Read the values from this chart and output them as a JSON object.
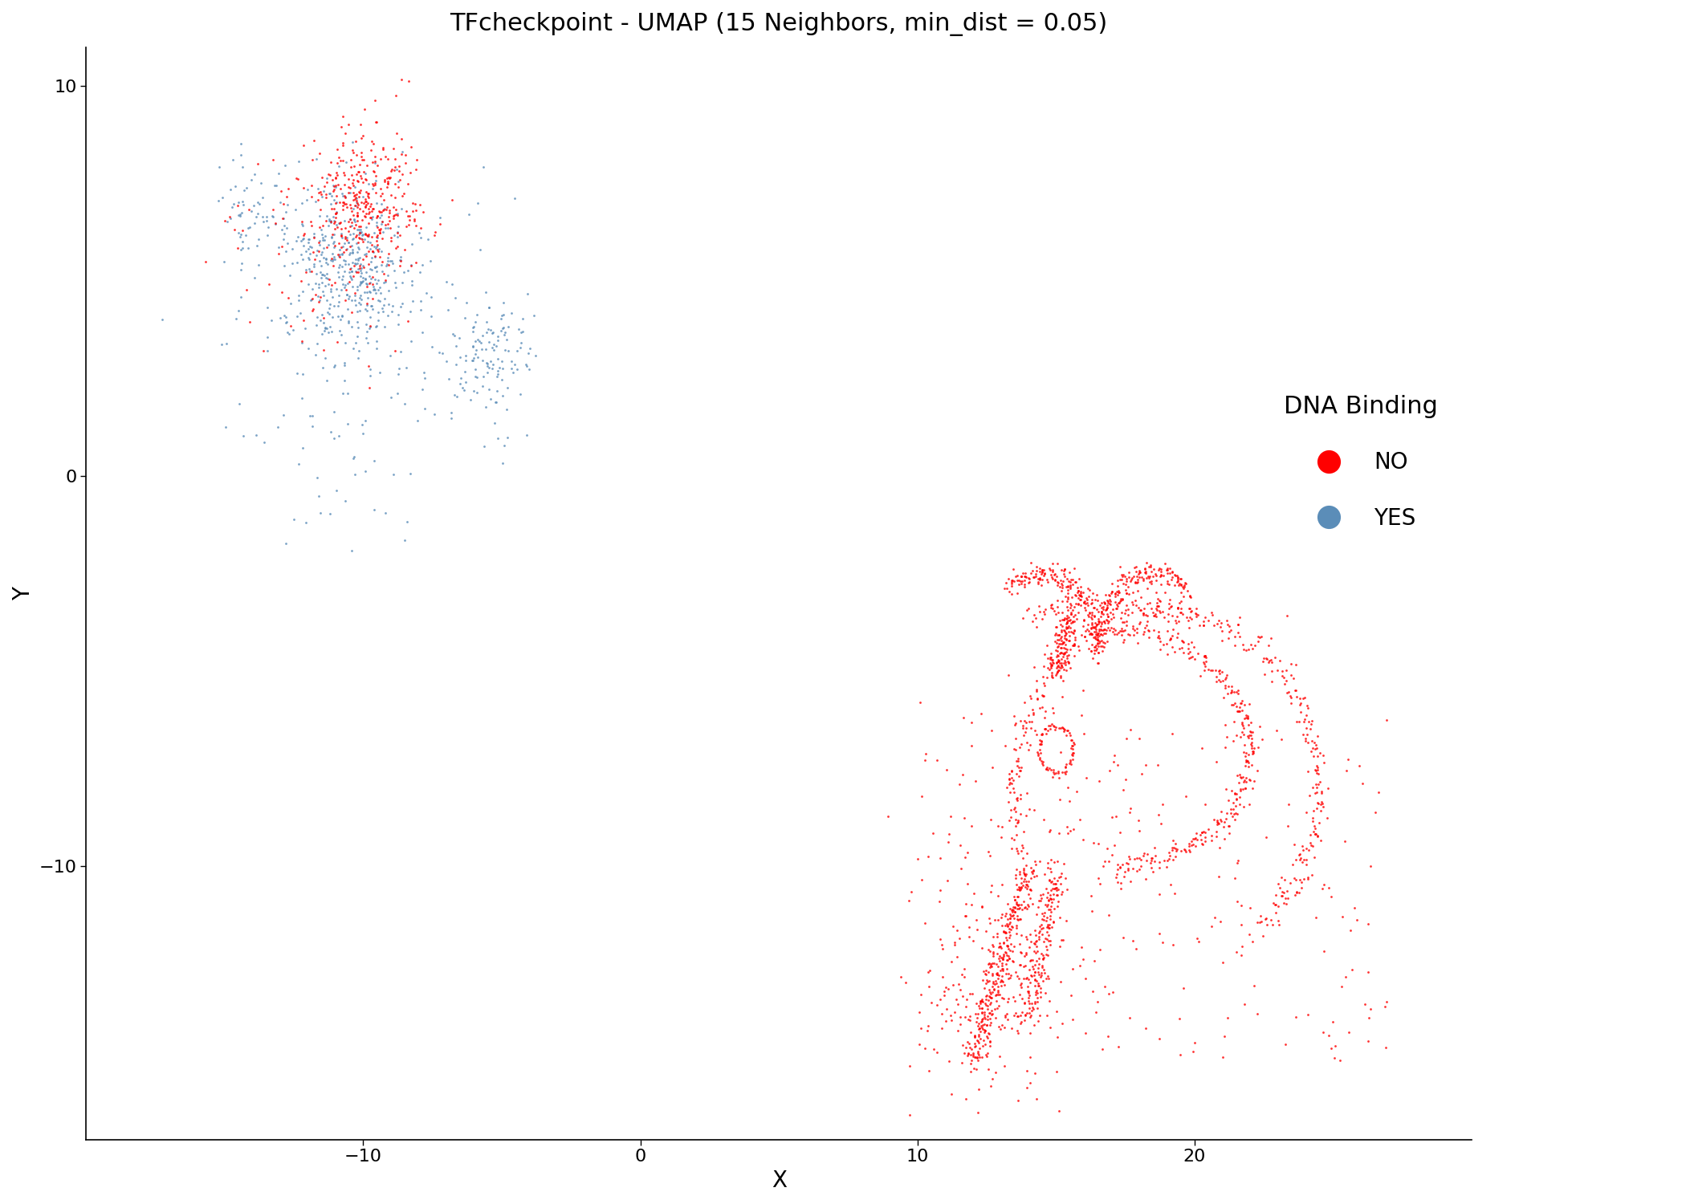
{
  "title": "TFcheckpoint - UMAP (15 Neighbors, min_dist = 0.05)",
  "xlabel": "X",
  "ylabel": "Y",
  "xlim": [
    -20,
    30
  ],
  "ylim": [
    -17,
    11
  ],
  "xticks": [
    -10,
    0,
    10,
    20
  ],
  "yticks": [
    -10,
    0,
    10
  ],
  "color_no": "#FF0000",
  "color_yes": "#5B8DB8",
  "legend_title": "DNA Binding",
  "legend_no": "NO",
  "legend_yes": "YES",
  "point_size": 4,
  "alpha": 0.8,
  "background_color": "#FFFFFF",
  "title_fontsize": 22,
  "axis_label_fontsize": 20,
  "tick_fontsize": 16,
  "legend_fontsize": 20,
  "legend_title_fontsize": 22
}
